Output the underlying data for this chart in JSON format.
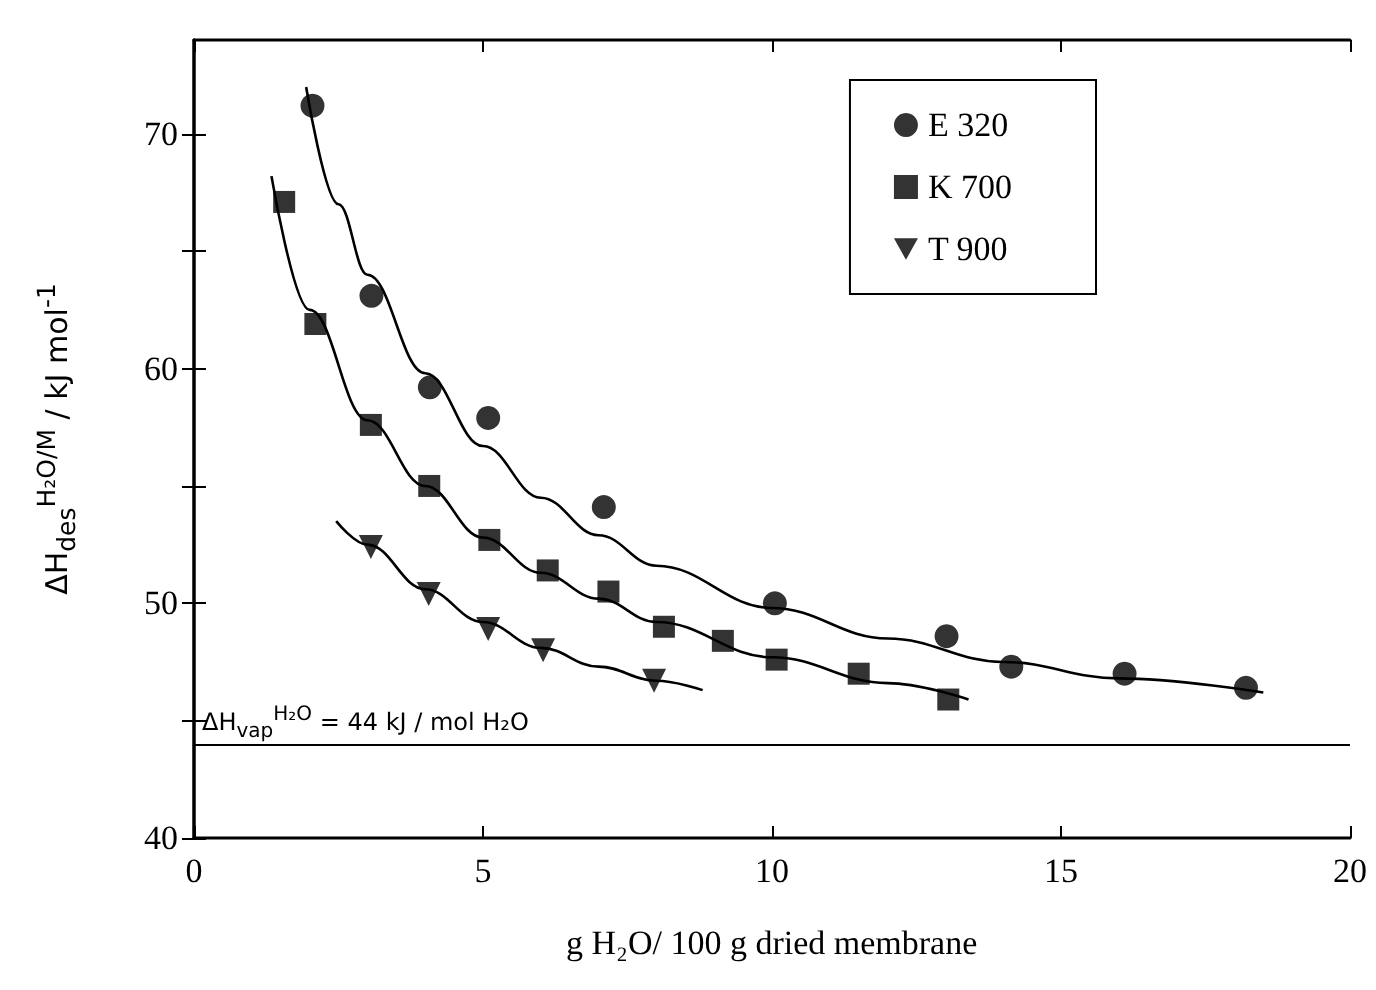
{
  "chart_data": {
    "type": "scatter",
    "xlabel": "g H₂O/ 100 g dried membrane",
    "ylabel": "ΔH$_{des}$$^{H₂O/M}$ / kJ mol$^{-1}$",
    "xlim": [
      0,
      20
    ],
    "xticks": [
      0,
      5,
      10,
      15,
      20
    ],
    "ylim": [
      40,
      74
    ],
    "yticks": [
      40,
      {
        "value": 45,
        "label": null
      },
      50,
      {
        "value": 55,
        "label": null
      },
      60,
      {
        "value": 65,
        "label": null
      },
      70
    ],
    "legend": "top right",
    "grid": false,
    "ref_lines": [
      {
        "axis": "y",
        "value": 44,
        "label": "ΔH$_{vap}$$^{H₂O}$ = 44 kJ / mol H₂O",
        "color": "#000000"
      }
    ],
    "series": [
      {
        "name": "E 320",
        "marker": "circle",
        "color": "#000000",
        "x": [
          2.05,
          3.07,
          4.08,
          5.09,
          7.09,
          10.05,
          13.02,
          14.14,
          16.1,
          18.2
        ],
        "values": [
          71.2,
          63.1,
          59.2,
          57.9,
          54.1,
          50.0,
          48.6,
          47.3,
          47.0,
          46.4
        ]
      },
      {
        "name": "K 700",
        "marker": "square",
        "color": "#000000",
        "x": [
          1.56,
          2.1,
          3.06,
          4.07,
          5.11,
          6.12,
          7.17,
          8.13,
          9.15,
          10.08,
          11.5,
          13.05
        ],
        "values": [
          67.1,
          61.9,
          57.6,
          55.0,
          52.7,
          51.4,
          50.5,
          49.0,
          48.4,
          47.6,
          47.0,
          45.9
        ]
      },
      {
        "name": "T 900",
        "marker": "triangle",
        "color": "#000000",
        "x": [
          3.06,
          4.06,
          5.09,
          6.04,
          7.96
        ],
        "values": [
          52.4,
          50.4,
          48.9,
          48.0,
          46.7
        ]
      },
      {
        "type": "line",
        "marker": "none",
        "color": "#000000",
        "x": [
          1.94,
          2.5,
          3,
          4,
          5,
          6,
          7,
          8,
          10,
          12,
          14,
          16,
          18.5
        ],
        "values": [
          72.0,
          67.0,
          64.0,
          59.8,
          56.7,
          54.5,
          52.9,
          51.6,
          49.8,
          48.5,
          47.5,
          46.8,
          46.2
        ]
      },
      {
        "type": "line",
        "marker": "none",
        "color": "#000000",
        "x": [
          1.34,
          2,
          3,
          4,
          5,
          6,
          7,
          8,
          10,
          12,
          13.4
        ],
        "values": [
          68.2,
          62.5,
          57.8,
          55.0,
          52.8,
          51.3,
          50.2,
          49.2,
          47.7,
          46.6,
          45.9
        ]
      },
      {
        "type": "line",
        "marker": "none",
        "color": "#000000",
        "x": [
          2.46,
          3,
          4,
          5,
          6,
          7,
          8,
          8.8
        ],
        "values": [
          53.5,
          52.5,
          50.6,
          49.2,
          48.1,
          47.3,
          46.7,
          46.3
        ]
      }
    ]
  }
}
